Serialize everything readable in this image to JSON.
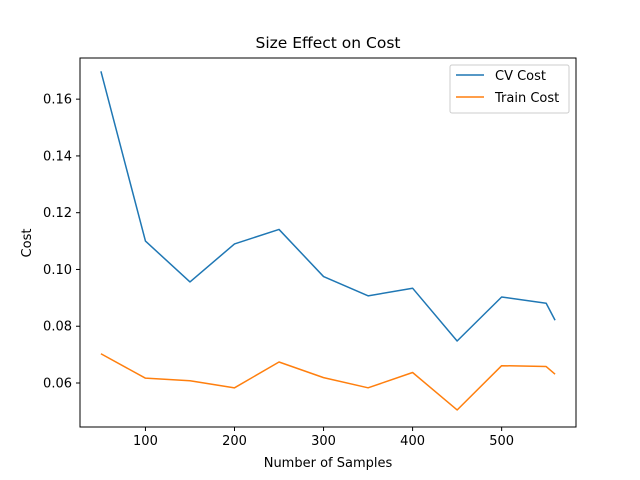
{
  "chart_data": {
    "type": "line",
    "title": "Size Effect on Cost",
    "xlabel": "Number of Samples",
    "ylabel": "Cost",
    "xlim": [
      26.5,
      583.5
    ],
    "ylim": [
      0.0445,
      0.1745
    ],
    "xticks": [
      100,
      200,
      300,
      400,
      500
    ],
    "yticks": [
      0.06,
      0.08,
      0.1,
      0.12,
      0.14,
      0.16
    ],
    "ytick_labels": [
      "0.06",
      "0.08",
      "0.10",
      "0.12",
      "0.14",
      "0.16"
    ],
    "grid": false,
    "legend_position": "top-right",
    "x": [
      50,
      100,
      150,
      200,
      250,
      300,
      350,
      400,
      450,
      500,
      550,
      560
    ],
    "series": [
      {
        "name": "CV Cost",
        "color": "#1f77b4",
        "values": [
          0.1698,
          0.11,
          0.0956,
          0.109,
          0.1141,
          0.0975,
          0.0907,
          0.0934,
          0.0748,
          0.0903,
          0.0881,
          0.0821
        ]
      },
      {
        "name": "Train Cost",
        "color": "#ff7f0e",
        "values": [
          0.0703,
          0.0617,
          0.0608,
          0.0583,
          0.0674,
          0.0619,
          0.0583,
          0.0637,
          0.0505,
          0.0661,
          0.0658,
          0.0631
        ]
      }
    ]
  }
}
